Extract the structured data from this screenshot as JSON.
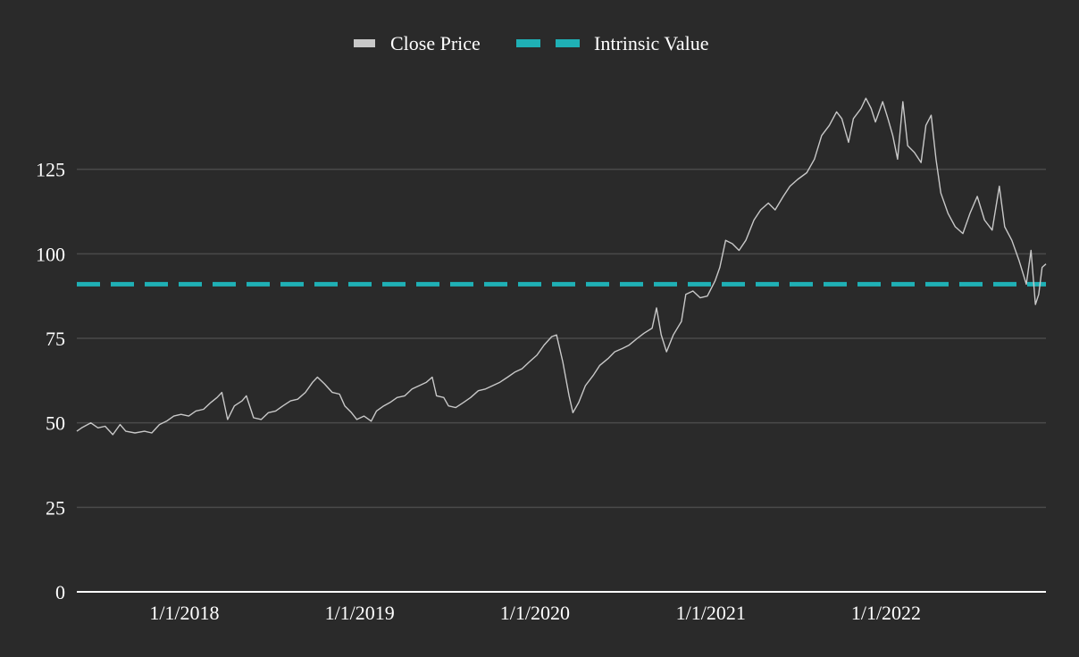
{
  "chart_data": {
    "type": "line",
    "title": "",
    "xlabel": "",
    "ylabel": "",
    "x_range": [
      "2017-05-22",
      "2022-11-30"
    ],
    "ylim": [
      0,
      150
    ],
    "y_ticks": [
      0,
      25,
      50,
      75,
      100,
      125
    ],
    "x_ticks": [
      "1/1/2018",
      "1/1/2019",
      "1/1/2020",
      "1/1/2021",
      "1/1/2022"
    ],
    "x_tick_dates": [
      "2018-01-01",
      "2019-01-01",
      "2020-01-01",
      "2021-01-01",
      "2022-01-01"
    ],
    "grid": true,
    "legend_position": "top-center",
    "series": [
      {
        "name": "Close Price",
        "color": "#c8c8c8",
        "style": "solid",
        "points": [
          [
            "2017-05-22",
            47.5
          ],
          [
            "2017-06-01",
            48.5
          ],
          [
            "2017-06-20",
            50.0
          ],
          [
            "2017-07-05",
            48.5
          ],
          [
            "2017-07-20",
            49.0
          ],
          [
            "2017-08-05",
            46.5
          ],
          [
            "2017-08-20",
            49.5
          ],
          [
            "2017-09-01",
            47.5
          ],
          [
            "2017-09-20",
            47.0
          ],
          [
            "2017-10-10",
            47.5
          ],
          [
            "2017-10-25",
            47.0
          ],
          [
            "2017-11-10",
            49.5
          ],
          [
            "2017-11-25",
            50.5
          ],
          [
            "2017-12-10",
            52.0
          ],
          [
            "2017-12-25",
            52.5
          ],
          [
            "2018-01-10",
            52.0
          ],
          [
            "2018-01-25",
            53.5
          ],
          [
            "2018-02-10",
            54.0
          ],
          [
            "2018-02-25",
            56.0
          ],
          [
            "2018-03-10",
            57.5
          ],
          [
            "2018-03-20",
            59.0
          ],
          [
            "2018-04-01",
            51.0
          ],
          [
            "2018-04-15",
            55.0
          ],
          [
            "2018-05-01",
            56.5
          ],
          [
            "2018-05-10",
            58.0
          ],
          [
            "2018-05-25",
            51.5
          ],
          [
            "2018-06-10",
            51.0
          ],
          [
            "2018-06-25",
            53.0
          ],
          [
            "2018-07-10",
            53.5
          ],
          [
            "2018-07-25",
            55.0
          ],
          [
            "2018-08-10",
            56.5
          ],
          [
            "2018-08-25",
            57.0
          ],
          [
            "2018-09-10",
            59.0
          ],
          [
            "2018-09-25",
            62.0
          ],
          [
            "2018-10-05",
            63.5
          ],
          [
            "2018-10-20",
            61.5
          ],
          [
            "2018-11-05",
            59.0
          ],
          [
            "2018-11-20",
            58.5
          ],
          [
            "2018-12-01",
            55.0
          ],
          [
            "2018-12-15",
            53.0
          ],
          [
            "2018-12-26",
            51.0
          ],
          [
            "2019-01-10",
            52.0
          ],
          [
            "2019-01-25",
            50.5
          ],
          [
            "2019-02-05",
            53.5
          ],
          [
            "2019-02-20",
            55.0
          ],
          [
            "2019-03-05",
            56.0
          ],
          [
            "2019-03-20",
            57.5
          ],
          [
            "2019-04-05",
            58.0
          ],
          [
            "2019-04-20",
            60.0
          ],
          [
            "2019-05-05",
            61.0
          ],
          [
            "2019-05-20",
            62.0
          ],
          [
            "2019-06-01",
            63.5
          ],
          [
            "2019-06-10",
            58.0
          ],
          [
            "2019-06-25",
            57.5
          ],
          [
            "2019-07-05",
            55.0
          ],
          [
            "2019-07-20",
            54.5
          ],
          [
            "2019-08-05",
            56.0
          ],
          [
            "2019-08-20",
            57.5
          ],
          [
            "2019-09-05",
            59.5
          ],
          [
            "2019-09-20",
            60.0
          ],
          [
            "2019-10-05",
            61.0
          ],
          [
            "2019-10-20",
            62.0
          ],
          [
            "2019-11-05",
            63.5
          ],
          [
            "2019-11-20",
            65.0
          ],
          [
            "2019-12-05",
            66.0
          ],
          [
            "2019-12-20",
            68.0
          ],
          [
            "2020-01-05",
            70.0
          ],
          [
            "2020-01-20",
            73.0
          ],
          [
            "2020-02-05",
            75.5
          ],
          [
            "2020-02-15",
            76.0
          ],
          [
            "2020-02-28",
            68.0
          ],
          [
            "2020-03-12",
            58.0
          ],
          [
            "2020-03-20",
            53.0
          ],
          [
            "2020-04-01",
            56.0
          ],
          [
            "2020-04-15",
            61.0
          ],
          [
            "2020-05-01",
            64.0
          ],
          [
            "2020-05-15",
            67.0
          ],
          [
            "2020-06-01",
            69.0
          ],
          [
            "2020-06-15",
            71.0
          ],
          [
            "2020-07-01",
            72.0
          ],
          [
            "2020-07-15",
            73.0
          ],
          [
            "2020-08-01",
            75.0
          ],
          [
            "2020-08-15",
            76.5
          ],
          [
            "2020-09-01",
            78.0
          ],
          [
            "2020-09-10",
            84.0
          ],
          [
            "2020-09-20",
            76.0
          ],
          [
            "2020-10-01",
            71.0
          ],
          [
            "2020-10-15",
            76.0
          ],
          [
            "2020-11-01",
            80.0
          ],
          [
            "2020-11-10",
            88.0
          ],
          [
            "2020-11-25",
            89.0
          ],
          [
            "2020-12-10",
            87.0
          ],
          [
            "2020-12-25",
            87.5
          ],
          [
            "2021-01-10",
            92.0
          ],
          [
            "2021-01-20",
            96.0
          ],
          [
            "2021-02-01",
            104.0
          ],
          [
            "2021-02-15",
            103.0
          ],
          [
            "2021-03-01",
            101.0
          ],
          [
            "2021-03-15",
            104.0
          ],
          [
            "2021-04-01",
            110.0
          ],
          [
            "2021-04-15",
            113.0
          ],
          [
            "2021-05-01",
            115.0
          ],
          [
            "2021-05-15",
            113.0
          ],
          [
            "2021-06-01",
            117.0
          ],
          [
            "2021-06-15",
            120.0
          ],
          [
            "2021-07-01",
            122.0
          ],
          [
            "2021-07-20",
            124.0
          ],
          [
            "2021-08-05",
            128.0
          ],
          [
            "2021-08-20",
            135.0
          ],
          [
            "2021-09-05",
            138.0
          ],
          [
            "2021-09-20",
            142.0
          ],
          [
            "2021-10-01",
            140.0
          ],
          [
            "2021-10-15",
            133.0
          ],
          [
            "2021-10-25",
            140.0
          ],
          [
            "2021-11-10",
            143.0
          ],
          [
            "2021-11-20",
            146.0
          ],
          [
            "2021-12-01",
            143.0
          ],
          [
            "2021-12-10",
            139.0
          ],
          [
            "2021-12-25",
            145.0
          ],
          [
            "2022-01-05",
            140.0
          ],
          [
            "2022-01-15",
            135.0
          ],
          [
            "2022-01-25",
            128.0
          ],
          [
            "2022-02-05",
            145.0
          ],
          [
            "2022-02-15",
            132.0
          ],
          [
            "2022-03-01",
            130.0
          ],
          [
            "2022-03-15",
            127.0
          ],
          [
            "2022-03-25",
            138.0
          ],
          [
            "2022-04-05",
            141.0
          ],
          [
            "2022-04-15",
            128.0
          ],
          [
            "2022-04-25",
            118.0
          ],
          [
            "2022-05-10",
            112.0
          ],
          [
            "2022-05-25",
            108.0
          ],
          [
            "2022-06-10",
            106.0
          ],
          [
            "2022-06-25",
            112.0
          ],
          [
            "2022-07-10",
            117.0
          ],
          [
            "2022-07-25",
            110.0
          ],
          [
            "2022-08-10",
            107.0
          ],
          [
            "2022-08-25",
            120.0
          ],
          [
            "2022-09-05",
            108.0
          ],
          [
            "2022-09-20",
            104.0
          ],
          [
            "2022-10-05",
            98.0
          ],
          [
            "2022-10-20",
            91.0
          ],
          [
            "2022-10-30",
            101.0
          ],
          [
            "2022-11-08",
            85.0
          ],
          [
            "2022-11-15",
            88.0
          ],
          [
            "2022-11-22",
            96.0
          ],
          [
            "2022-11-30",
            97.0
          ]
        ]
      },
      {
        "name": "Intrinsic Value",
        "color": "#1fb0b5",
        "style": "dashed",
        "points": [
          [
            "2017-05-22",
            91.0
          ],
          [
            "2022-11-30",
            91.0
          ]
        ]
      }
    ]
  }
}
